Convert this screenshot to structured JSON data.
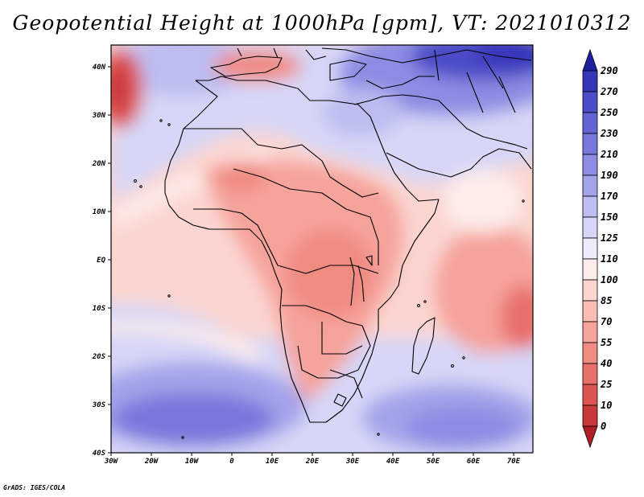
{
  "title": "Geopotential Height at 1000hPa [gpm], VT: 2021010312",
  "footer": "GrADS: IGES/COLA",
  "map": {
    "lon_range": [
      -30,
      75
    ],
    "lat_range": [
      -40,
      45
    ],
    "x_ticks": [
      "30W",
      "20W",
      "10W",
      "0",
      "10E",
      "20E",
      "30E",
      "40E",
      "50E",
      "60E",
      "70E"
    ],
    "y_ticks": [
      "40S",
      "30S",
      "20S",
      "10S",
      "EQ",
      "10N",
      "20N",
      "30N",
      "40N"
    ]
  },
  "colorbar": {
    "levels": [
      "0",
      "10",
      "25",
      "40",
      "55",
      "70",
      "85",
      "100",
      "110",
      "125",
      "150",
      "170",
      "190",
      "210",
      "230",
      "250",
      "270",
      "290"
    ],
    "colors": [
      "#b01e26",
      "#c8393b",
      "#dd5553",
      "#e8706a",
      "#f08b82",
      "#f5a39b",
      "#f9bdb6",
      "#fbd5d0",
      "#fdecea",
      "#ececfb",
      "#d6d6f7",
      "#bdbdf1",
      "#a3a3ea",
      "#8c8ce3",
      "#7878dc",
      "#6363d3",
      "#4c4cc8",
      "#3535b8",
      "#1e1ea0"
    ]
  }
}
